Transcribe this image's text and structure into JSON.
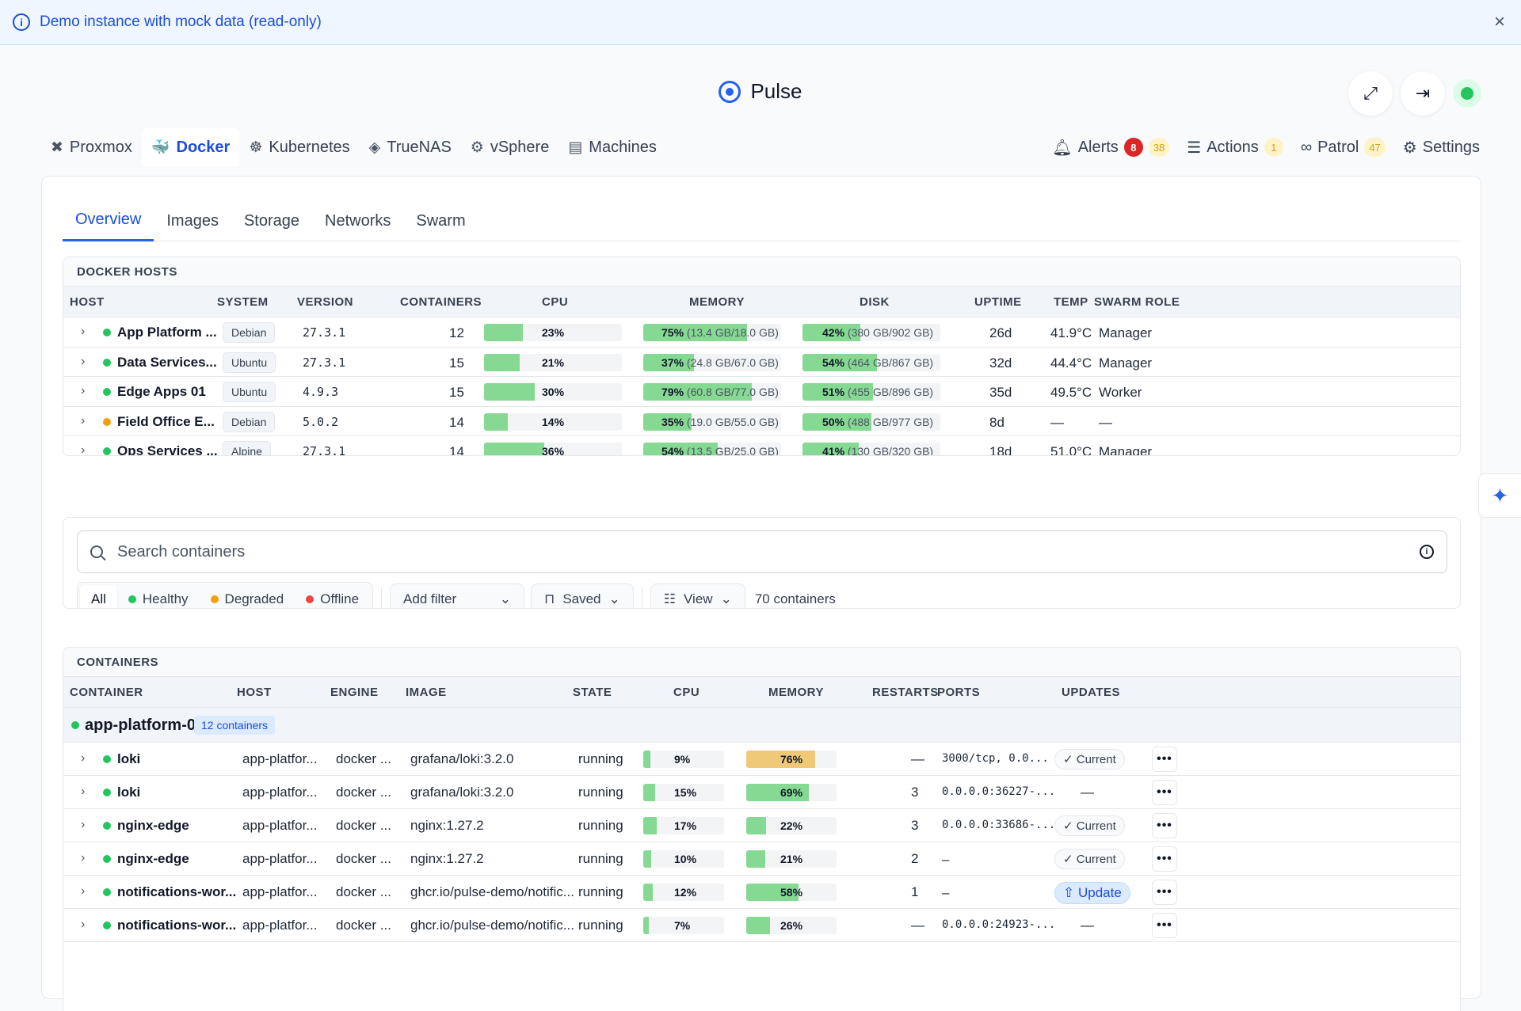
{
  "banner": {
    "text": "Demo instance with mock data (read-only)",
    "close": "×"
  },
  "brand": {
    "name": "Pulse"
  },
  "header": {
    "expand_icon": "⤢",
    "logout_icon": "⇥"
  },
  "platform_tabs": [
    {
      "label": "Proxmox",
      "icon": "✖"
    },
    {
      "label": "Docker",
      "icon": "🐳"
    },
    {
      "label": "Kubernetes",
      "icon": "☸"
    },
    {
      "label": "TrueNAS",
      "icon": "◈"
    },
    {
      "label": "vSphere",
      "icon": "⚙"
    },
    {
      "label": "Machines",
      "icon": "▤"
    }
  ],
  "right_tabs": {
    "alerts": {
      "label": "Alerts",
      "critical": "8",
      "warning": "38"
    },
    "actions": {
      "label": "Actions",
      "count": "1"
    },
    "patrol": {
      "label": "Patrol",
      "count": "47"
    },
    "settings": {
      "label": "Settings"
    }
  },
  "subtabs": [
    "Overview",
    "Images",
    "Storage",
    "Networks",
    "Swarm"
  ],
  "hosts_panel": {
    "title": "DOCKER HOSTS",
    "columns": [
      "HOST",
      "SYSTEM",
      "VERSION",
      "CONTAINERS",
      "CPU",
      "MEMORY",
      "DISK",
      "UPTIME",
      "TEMP",
      "SWARM ROLE"
    ],
    "rows": [
      {
        "name": "App Platform ...",
        "status": "green",
        "system": "Debian",
        "version": "27.3.1",
        "containers": "12",
        "cpu": 23,
        "cpu_label": "23%",
        "mem": 75,
        "mem_pct": "75%",
        "mem_detail": "(13.4 GB/18.0 GB)",
        "disk": 42,
        "disk_pct": "42%",
        "disk_detail": "(380 GB/902 GB)",
        "uptime": "26d",
        "temp": "41.9°C",
        "role": "Manager"
      },
      {
        "name": "Data Services...",
        "status": "green",
        "system": "Ubuntu",
        "version": "27.3.1",
        "containers": "15",
        "cpu": 21,
        "cpu_label": "21%",
        "mem": 37,
        "mem_pct": "37%",
        "mem_detail": "(24.8 GB/67.0 GB)",
        "disk": 54,
        "disk_pct": "54%",
        "disk_detail": "(464 GB/867 GB)",
        "uptime": "32d",
        "temp": "44.4°C",
        "role": "Manager"
      },
      {
        "name": "Edge Apps 01",
        "status": "green",
        "system": "Ubuntu",
        "version": "4.9.3",
        "containers": "15",
        "cpu": 30,
        "cpu_label": "30%",
        "mem": 79,
        "mem_pct": "79%",
        "mem_detail": "(60.8 GB/77.0 GB)",
        "disk": 51,
        "disk_pct": "51%",
        "disk_detail": "(455 GB/896 GB)",
        "uptime": "35d",
        "temp": "49.5°C",
        "role": "Worker"
      },
      {
        "name": "Field Office E...",
        "status": "orange",
        "system": "Debian",
        "version": "5.0.2",
        "containers": "14",
        "cpu": 14,
        "cpu_label": "14%",
        "mem": 35,
        "mem_pct": "35%",
        "mem_detail": "(19.0 GB/55.0 GB)",
        "disk": 50,
        "disk_pct": "50%",
        "disk_detail": "(488 GB/977 GB)",
        "uptime": "8d",
        "temp": "—",
        "role": "—"
      },
      {
        "name": "Ops Services ...",
        "status": "green",
        "system": "Alpine",
        "version": "27.3.1",
        "containers": "14",
        "cpu": 36,
        "cpu_label": "36%",
        "mem": 54,
        "mem_pct": "54%",
        "mem_detail": "(13.5 GB/25.0 GB)",
        "disk": 41,
        "disk_pct": "41%",
        "disk_detail": "(130 GB/320 GB)",
        "uptime": "18d",
        "temp": "51.0°C",
        "role": "Manager"
      }
    ]
  },
  "search": {
    "placeholder": "Search containers"
  },
  "filters": {
    "all": "All",
    "healthy": "Healthy",
    "degraded": "Degraded",
    "offline": "Offline",
    "add_filter": "Add filter",
    "saved": "Saved",
    "view": "View",
    "count": "70 containers"
  },
  "containers_panel": {
    "title": "CONTAINERS",
    "columns": [
      "CONTAINER",
      "HOST",
      "ENGINE",
      "IMAGE",
      "STATE",
      "CPU",
      "MEMORY",
      "RESTARTS",
      "PORTS",
      "UPDATES"
    ],
    "group": {
      "name": "app-platform-01",
      "chip": "12 containers"
    },
    "rows": [
      {
        "name": "loki",
        "host": "app-platfor...",
        "engine": "docker ...",
        "image": "grafana/loki:3.2.0",
        "state": "running",
        "cpu": 9,
        "cpu_label": "9%",
        "mem": 76,
        "mem_label": "76%",
        "mem_color": "amber",
        "restarts": "—",
        "ports": "3000/tcp, 0.0...",
        "ports_mono": true,
        "update": "✓ Current",
        "update_type": "current"
      },
      {
        "name": "loki",
        "host": "app-platfor...",
        "engine": "docker ...",
        "image": "grafana/loki:3.2.0",
        "state": "running",
        "cpu": 15,
        "cpu_label": "15%",
        "mem": 69,
        "mem_label": "69%",
        "mem_color": "green",
        "restarts": "3",
        "ports": "0.0.0.0:36227-...",
        "ports_mono": true,
        "update": "—",
        "update_type": "none"
      },
      {
        "name": "nginx-edge",
        "host": "app-platfor...",
        "engine": "docker ...",
        "image": "nginx:1.27.2",
        "state": "running",
        "cpu": 17,
        "cpu_label": "17%",
        "mem": 22,
        "mem_label": "22%",
        "mem_color": "green",
        "restarts": "3",
        "ports": "0.0.0.0:33686-...",
        "ports_mono": true,
        "update": "✓ Current",
        "update_type": "current"
      },
      {
        "name": "nginx-edge",
        "host": "app-platfor...",
        "engine": "docker ...",
        "image": "nginx:1.27.2",
        "state": "running",
        "cpu": 10,
        "cpu_label": "10%",
        "mem": 21,
        "mem_label": "21%",
        "mem_color": "green",
        "restarts": "2",
        "ports": "–",
        "ports_mono": false,
        "update": "✓ Current",
        "update_type": "current"
      },
      {
        "name": "notifications-wor...",
        "host": "app-platfor...",
        "engine": "docker ...",
        "image": "ghcr.io/pulse-demo/notific...",
        "state": "running",
        "cpu": 12,
        "cpu_label": "12%",
        "mem": 58,
        "mem_label": "58%",
        "mem_color": "green",
        "restarts": "1",
        "ports": "–",
        "ports_mono": false,
        "update": "⇧ Update",
        "update_type": "update"
      },
      {
        "name": "notifications-wor...",
        "host": "app-platfor...",
        "engine": "docker ...",
        "image": "ghcr.io/pulse-demo/notific...",
        "state": "running",
        "cpu": 7,
        "cpu_label": "7%",
        "mem": 26,
        "mem_label": "26%",
        "mem_color": "green",
        "restarts": "—",
        "ports": "0.0.0.0:24923-...",
        "ports_mono": true,
        "update": "—",
        "update_type": "none"
      }
    ]
  },
  "colors": {
    "accent": "#2563eb",
    "healthy": "#22c55e",
    "degraded": "#f59e0b",
    "offline": "#ef4444",
    "bar_fill": "#86d993",
    "bar_warn": "#efc978"
  },
  "side_button_icon": "sparkle-icon"
}
